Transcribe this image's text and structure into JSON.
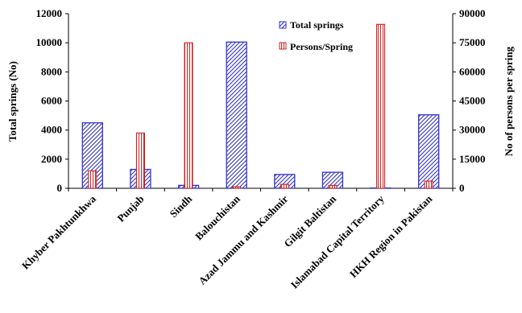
{
  "chart_data": {
    "type": "bar",
    "categories": [
      "Khyber Pakhtunkhwa",
      "Punjab",
      "Sindh",
      "Balouchistan",
      "Azad Jammu and Kashmir",
      "Gilgit Baltistan",
      "Islamabad Capital Territory",
      "HKH Region in Pakistan"
    ],
    "series": [
      {
        "name": "Total springs",
        "axis": "left",
        "color": "#3333cc",
        "pattern": "diagonal-hatch",
        "values": [
          4500,
          1300,
          200,
          10050,
          950,
          1100,
          20,
          5050
        ]
      },
      {
        "name": "Persons/Spring",
        "axis": "right",
        "color": "#cc2222",
        "pattern": "vertical-hatch",
        "values": [
          9000,
          28500,
          75000,
          800,
          2000,
          1500,
          84500,
          3700
        ]
      }
    ],
    "ylabel": "Total springs (No)",
    "ylim": [
      0,
      12000
    ],
    "yticks": [
      "0",
      "2000",
      "4000",
      "6000",
      "8000",
      "10000",
      "12000"
    ],
    "y2label": "No of persons per spring",
    "y2lim": [
      0,
      90000
    ],
    "y2ticks": [
      "0",
      "15000",
      "30000",
      "45000",
      "60000",
      "75000",
      "90000"
    ],
    "legend_position": "top-right",
    "grid": false
  }
}
